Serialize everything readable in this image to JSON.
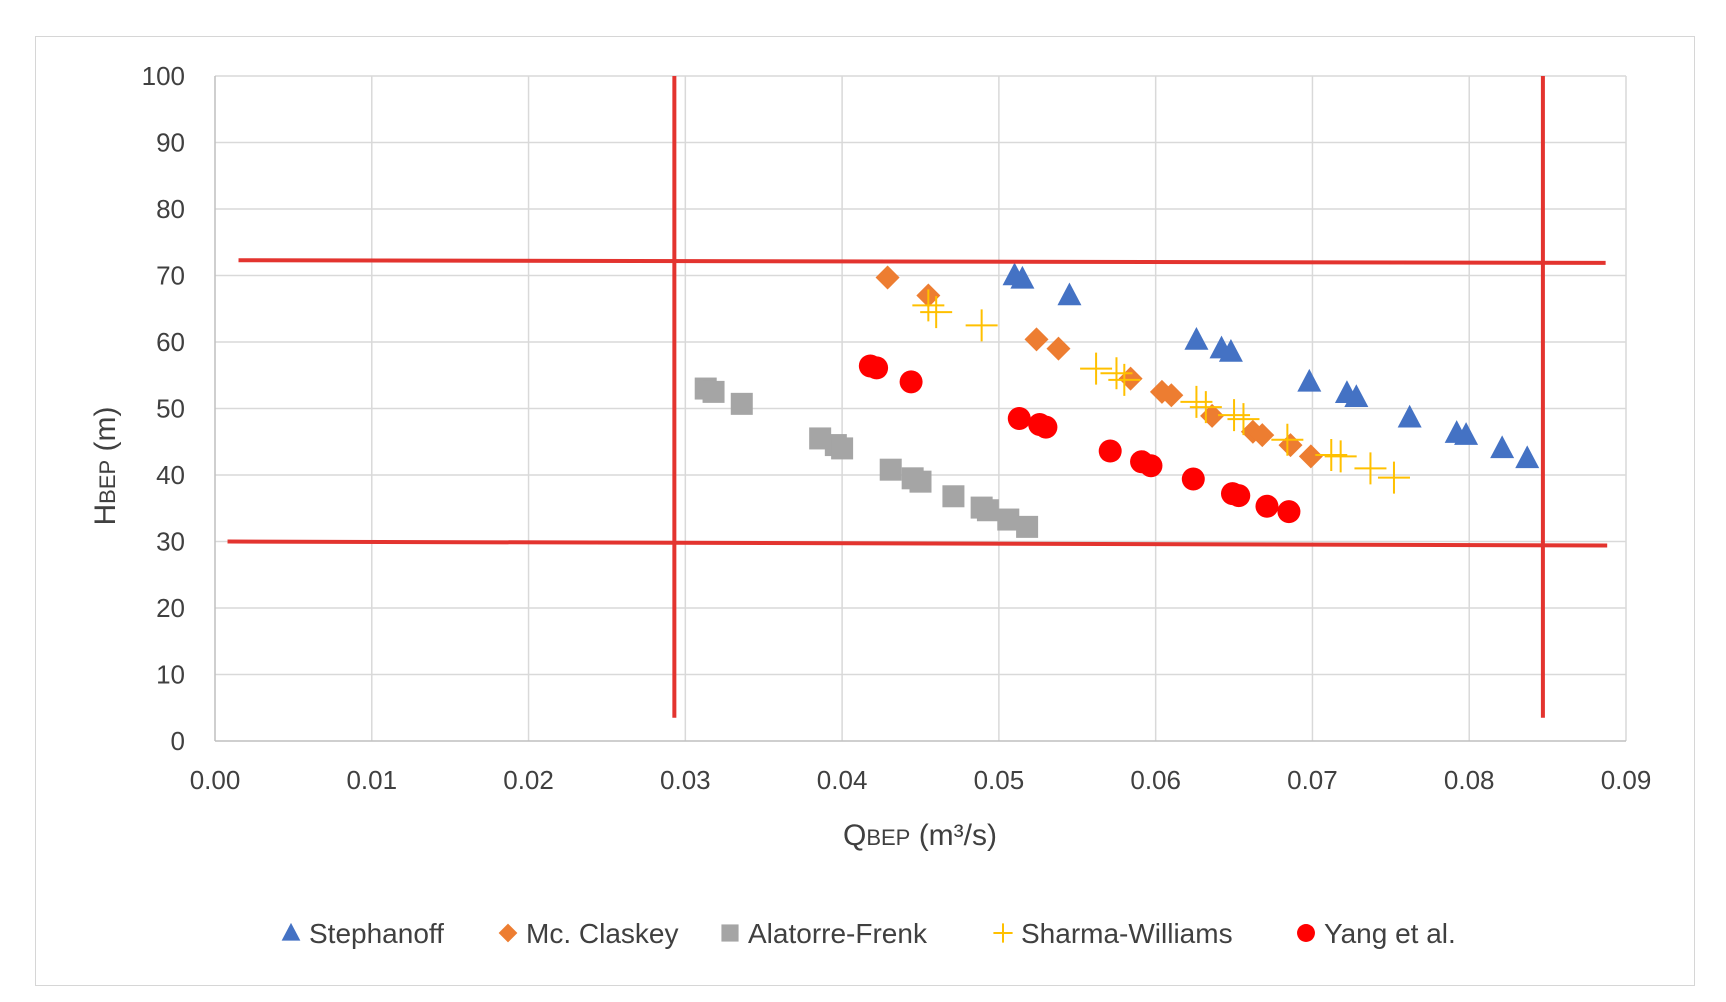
{
  "chart_data": {
    "type": "scatter",
    "xlabel": {
      "main": "Q",
      "sub": "BEP",
      "unit": " (m³/s)"
    },
    "ylabel": {
      "main": "H",
      "sub": "BEP",
      "unit": " (m)"
    },
    "xlim": [
      0,
      0.09
    ],
    "ylim": [
      0,
      100
    ],
    "x_ticks": [
      0.0,
      0.01,
      0.02,
      0.03,
      0.04,
      0.05,
      0.06,
      0.07,
      0.08,
      0.09
    ],
    "x_tick_labels": [
      "0.00",
      "0.01",
      "0.02",
      "0.03",
      "0.04",
      "0.05",
      "0.06",
      "0.07",
      "0.08",
      "0.09"
    ],
    "y_ticks": [
      0,
      10,
      20,
      30,
      40,
      50,
      60,
      70,
      80,
      90,
      100
    ],
    "y_tick_labels": [
      "0",
      "10",
      "20",
      "30",
      "40",
      "50",
      "60",
      "70",
      "80",
      "90",
      "100"
    ],
    "grid": true,
    "legend_position": "bottom",
    "series": [
      {
        "name": "Stephanoff",
        "marker": "triangle",
        "color": "#4472C4",
        "points": [
          [
            0.051,
            70
          ],
          [
            0.0515,
            69.5
          ],
          [
            0.0545,
            67
          ],
          [
            0.0626,
            60.3
          ],
          [
            0.0642,
            59
          ],
          [
            0.0648,
            58.5
          ],
          [
            0.0698,
            54
          ],
          [
            0.0722,
            52.3
          ],
          [
            0.0728,
            51.7
          ],
          [
            0.0762,
            48.6
          ],
          [
            0.0792,
            46.3
          ],
          [
            0.0798,
            46
          ],
          [
            0.0821,
            44
          ],
          [
            0.0837,
            42.5
          ]
        ]
      },
      {
        "name": "Mc. Claskey",
        "marker": "diamond",
        "color": "#ED7D31",
        "points": [
          [
            0.0429,
            69.7
          ],
          [
            0.0455,
            67
          ],
          [
            0.0524,
            60.4
          ],
          [
            0.0538,
            59
          ],
          [
            0.0584,
            54.5
          ],
          [
            0.0604,
            52.5
          ],
          [
            0.061,
            52
          ],
          [
            0.0636,
            48.9
          ],
          [
            0.0662,
            46.5
          ],
          [
            0.0668,
            46
          ],
          [
            0.0686,
            44.5
          ],
          [
            0.0699,
            42.8
          ]
        ]
      },
      {
        "name": "Alatorre-Frenk",
        "marker": "square",
        "color": "#A5A5A5",
        "points": [
          [
            0.0313,
            53
          ],
          [
            0.0318,
            52.5
          ],
          [
            0.0336,
            50.7
          ],
          [
            0.0386,
            45.5
          ],
          [
            0.0396,
            44.5
          ],
          [
            0.04,
            44
          ],
          [
            0.0431,
            40.8
          ],
          [
            0.0445,
            39.5
          ],
          [
            0.045,
            39
          ],
          [
            0.0471,
            36.8
          ],
          [
            0.0489,
            35.1
          ],
          [
            0.0493,
            34.7
          ],
          [
            0.0506,
            33.3
          ],
          [
            0.0518,
            32.2
          ]
        ]
      },
      {
        "name": "Sharma-Williams",
        "marker": "plus",
        "color": "#FFC000",
        "points": [
          [
            0.0455,
            65.5
          ],
          [
            0.046,
            64.5
          ],
          [
            0.0489,
            62.5
          ],
          [
            0.0562,
            56
          ],
          [
            0.0575,
            55.3
          ],
          [
            0.058,
            54.3
          ],
          [
            0.0626,
            51
          ],
          [
            0.0632,
            50.2
          ],
          [
            0.065,
            49
          ],
          [
            0.0656,
            48.4
          ],
          [
            0.0684,
            45.3
          ],
          [
            0.0712,
            43
          ],
          [
            0.0718,
            42.8
          ],
          [
            0.0737,
            41
          ],
          [
            0.0752,
            39.6
          ]
        ]
      },
      {
        "name": "Yang et al.",
        "marker": "circle",
        "color": "#FF0000",
        "points": [
          [
            0.0418,
            56.4
          ],
          [
            0.0422,
            56.1
          ],
          [
            0.0444,
            54
          ],
          [
            0.0513,
            48.5
          ],
          [
            0.0526,
            47.6
          ],
          [
            0.053,
            47.2
          ],
          [
            0.0571,
            43.6
          ],
          [
            0.0591,
            42
          ],
          [
            0.0597,
            41.4
          ],
          [
            0.0624,
            39.4
          ],
          [
            0.0649,
            37.2
          ],
          [
            0.0653,
            36.9
          ],
          [
            0.0671,
            35.3
          ],
          [
            0.0685,
            34.5
          ]
        ]
      }
    ],
    "overlay_lines": {
      "color": "#E3342F",
      "segments": [
        {
          "x1": 0.0015,
          "y1": 72.3,
          "x2": 0.0887,
          "y2": 71.9
        },
        {
          "x1": 0.0008,
          "y1": 30.0,
          "x2": 0.0888,
          "y2": 29.4
        },
        {
          "x1": 0.0293,
          "y1": 100,
          "x2": 0.0293,
          "y2": 3.5
        },
        {
          "x1": 0.0847,
          "y1": 100,
          "x2": 0.0847,
          "y2": 3.5
        }
      ]
    }
  }
}
